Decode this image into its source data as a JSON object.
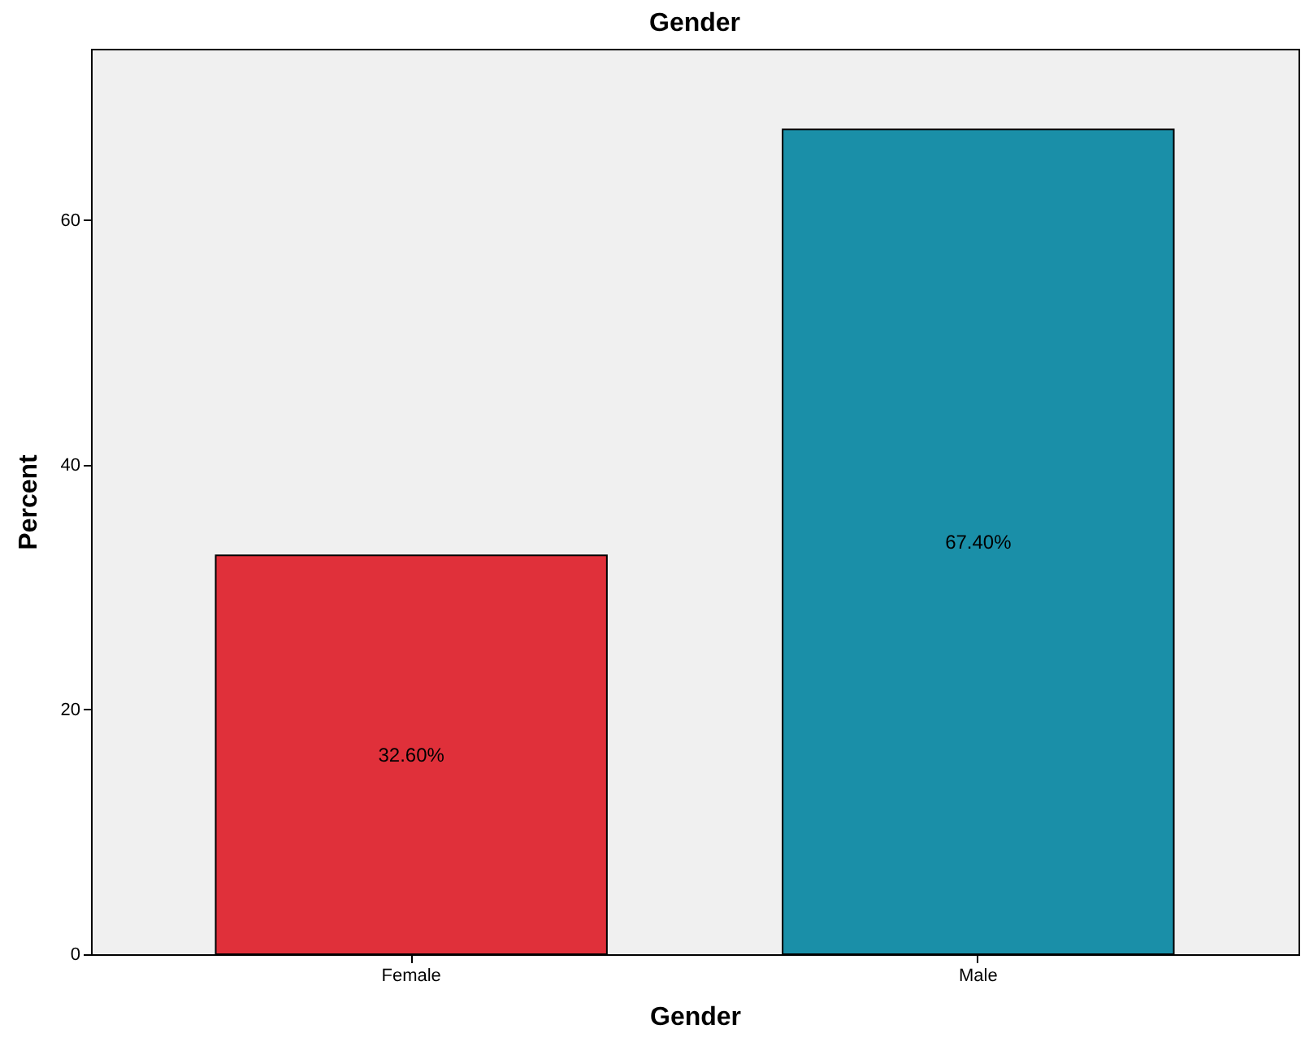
{
  "chart_data": {
    "type": "bar",
    "title": "Gender",
    "xlabel": "Gender",
    "ylabel": "Percent",
    "categories": [
      "Female",
      "Male"
    ],
    "values": [
      32.6,
      67.4
    ],
    "colors": [
      "#e0303a",
      "#1a8fa8"
    ],
    "value_labels": [
      "32.60%",
      "67.40%"
    ],
    "ylim": [
      0,
      74
    ],
    "yticks": [
      0,
      20,
      40,
      60
    ],
    "grid": false,
    "legend": false
  }
}
